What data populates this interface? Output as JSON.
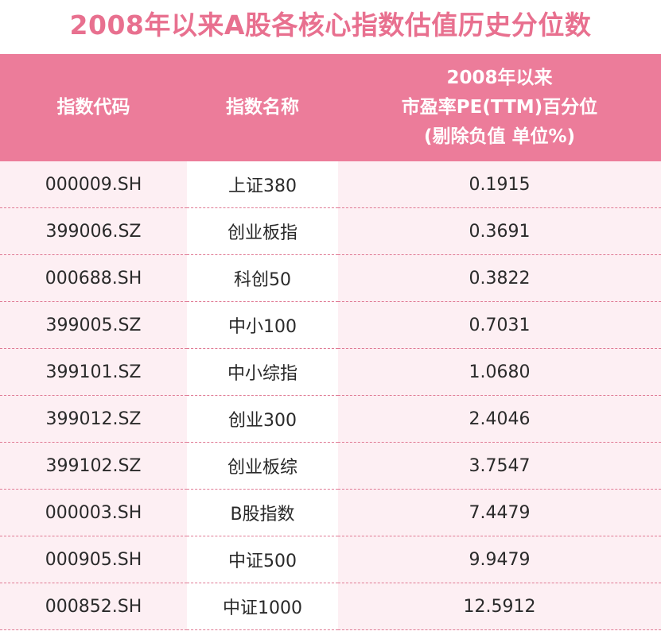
{
  "title": "2008年以来A股各核心指数估值历史分位数",
  "headers": {
    "code": "指数代码",
    "name": "指数名称",
    "pct_line1": "2008年以来",
    "pct_line2": "市盈率PE(TTM)百分位",
    "pct_line3": "(剔除负值 单位%)"
  },
  "rows": [
    {
      "code": "000009.SH",
      "name": "上证380",
      "value": "0.1915"
    },
    {
      "code": "399006.SZ",
      "name": "创业板指",
      "value": "0.3691"
    },
    {
      "code": "000688.SH",
      "name": "科创50",
      "value": "0.3822"
    },
    {
      "code": "399005.SZ",
      "name": "中小100",
      "value": "0.7031"
    },
    {
      "code": "399101.SZ",
      "name": "中小综指",
      "value": "1.0680"
    },
    {
      "code": "399012.SZ",
      "name": "创业300",
      "value": "2.4046"
    },
    {
      "code": "399102.SZ",
      "name": "创业板综",
      "value": "3.7547"
    },
    {
      "code": "000003.SH",
      "name": "B股指数",
      "value": "7.4479"
    },
    {
      "code": "000905.SH",
      "name": "中证500",
      "value": "9.9479"
    },
    {
      "code": "000852.SH",
      "name": "中证1000",
      "value": "12.5912"
    }
  ]
}
